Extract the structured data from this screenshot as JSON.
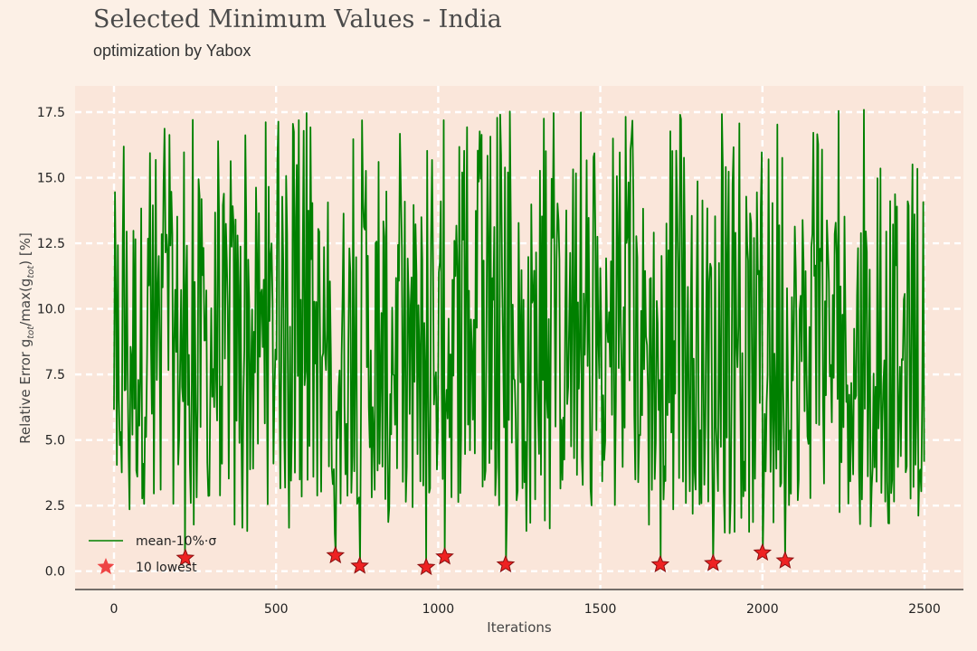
{
  "chart_data": {
    "type": "line",
    "title": "Selected Minimum Values - India",
    "subtitle": "optimization by Yabox",
    "xlabel": "Iterations",
    "ylabel": "Relative Error g_tot/max(g_tot) [%]",
    "xlim": [
      -120,
      2620
    ],
    "ylim": [
      -0.7,
      18.5
    ],
    "xticks": [
      "0",
      "500",
      "1000",
      "1500",
      "2000",
      "2500"
    ],
    "yticks": [
      "0.0",
      "2.5",
      "5.0",
      "7.5",
      "10.0",
      "12.5",
      "15.0",
      "17.5"
    ],
    "grid": true,
    "legend_position": "lower-left",
    "series": [
      {
        "name": "mean-10%·σ",
        "color": "#008000",
        "x_range": [
          0,
          2500
        ],
        "y_range": [
          0.2,
          17.6
        ],
        "y_mean": 8.5
      }
    ],
    "markers": {
      "name": "10 lowest",
      "color": "#ee2222",
      "shape": "star",
      "points": [
        {
          "x": 220,
          "y": 0.5
        },
        {
          "x": 683,
          "y": 0.6
        },
        {
          "x": 758,
          "y": 0.2
        },
        {
          "x": 963,
          "y": 0.15
        },
        {
          "x": 1020,
          "y": 0.55
        },
        {
          "x": 1208,
          "y": 0.25
        },
        {
          "x": 1685,
          "y": 0.25
        },
        {
          "x": 1848,
          "y": 0.3
        },
        {
          "x": 2000,
          "y": 0.7
        },
        {
          "x": 2070,
          "y": 0.4
        }
      ]
    }
  }
}
